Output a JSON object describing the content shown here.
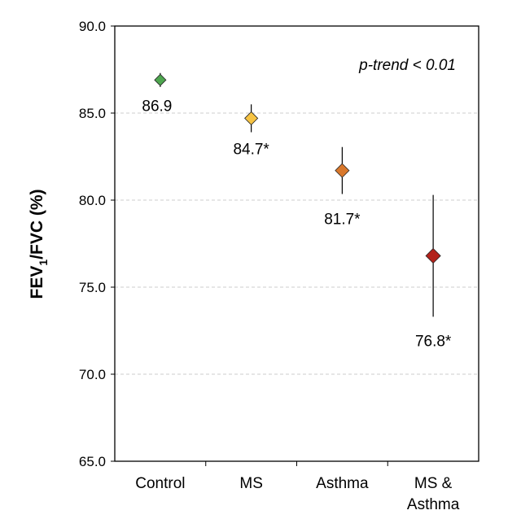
{
  "chart_data": {
    "type": "scatter",
    "title": "",
    "xlabel": "",
    "ylabel_main": "FEV",
    "ylabel_sub": "1",
    "ylabel_rest": "/FVC (%)",
    "ylim": [
      65,
      90
    ],
    "yticks": [
      "65.0",
      "70.0",
      "75.0",
      "80.0",
      "85.0",
      "90.0"
    ],
    "ytick_values": [
      65,
      70,
      75,
      80,
      85,
      90
    ],
    "grid": "horizontal dashed",
    "annotation": "p-trend < 0.01",
    "categories": [
      {
        "line1": "Control",
        "line2": ""
      },
      {
        "line1": "MS",
        "line2": ""
      },
      {
        "line1": "Asthma",
        "line2": ""
      },
      {
        "line1": "MS &",
        "line2": "Asthma"
      }
    ],
    "values": [
      86.9,
      84.7,
      81.7,
      76.8
    ],
    "errors": [
      0.4,
      0.8,
      1.35,
      3.5
    ],
    "data_labels": [
      "86.9",
      "84.7*",
      "81.7*",
      "76.8*"
    ],
    "colors": [
      "#4ea64f",
      "#f6c343",
      "#d9782c",
      "#b2231c"
    ]
  }
}
